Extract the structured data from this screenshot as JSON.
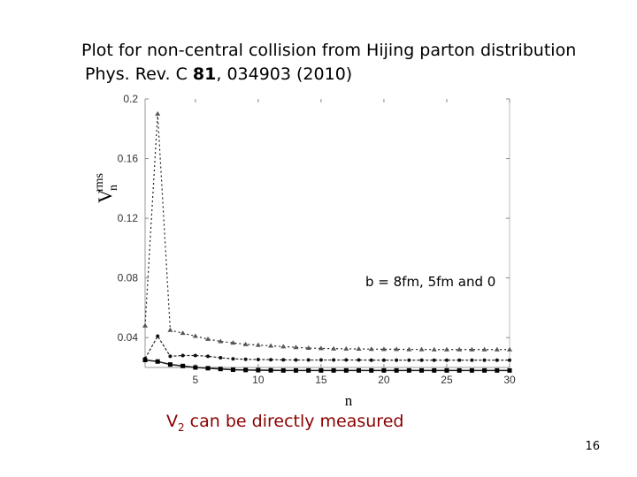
{
  "slide": {
    "title_line1": "Plot for non-central collision from Hijing parton distribution",
    "title_ref_prefix": "Phys. Rev. C ",
    "title_ref_volume": "81",
    "title_ref_suffix": ", 034903 (2010)",
    "caption_main": "V",
    "caption_sub": "2",
    "caption_rest": " can be directly measured",
    "page_number": "16"
  },
  "chart_data": {
    "type": "line",
    "title": "",
    "xlabel": "n",
    "ylabel_main": "V",
    "ylabel_sub": "n",
    "ylabel_sup": "rms",
    "xlim": [
      1,
      30
    ],
    "ylim": [
      0.02,
      0.2
    ],
    "xticks": [
      5,
      10,
      15,
      20,
      25,
      30
    ],
    "yticks": [
      0.04,
      0.08,
      0.12,
      0.16,
      0.2
    ],
    "ytick_labels": [
      "0.04",
      "0.08",
      "0.12",
      "0.16",
      "0.2"
    ],
    "annotation": "b = 8fm, 5fm and 0",
    "x": [
      1,
      2,
      3,
      4,
      5,
      6,
      7,
      8,
      9,
      10,
      11,
      12,
      13,
      14,
      15,
      16,
      17,
      18,
      19,
      20,
      21,
      22,
      23,
      24,
      25,
      26,
      27,
      28,
      29,
      30
    ],
    "series": [
      {
        "marker": "triangle",
        "values": [
          0.048,
          0.19,
          0.045,
          0.043,
          0.041,
          0.039,
          0.0375,
          0.0365,
          0.0355,
          0.035,
          0.0345,
          0.034,
          0.0335,
          0.033,
          0.0328,
          0.0326,
          0.0325,
          0.0324,
          0.0323,
          0.0322,
          0.0322,
          0.0321,
          0.0321,
          0.032,
          0.032,
          0.032,
          0.032,
          0.032,
          0.032,
          0.032
        ]
      },
      {
        "marker": "circle",
        "values": [
          0.026,
          0.041,
          0.0275,
          0.028,
          0.028,
          0.0275,
          0.0265,
          0.0258,
          0.0255,
          0.0253,
          0.0252,
          0.0251,
          0.025,
          0.025,
          0.025,
          0.025,
          0.025,
          0.025,
          0.0249,
          0.0249,
          0.0249,
          0.0249,
          0.0249,
          0.0249,
          0.0249,
          0.0249,
          0.0249,
          0.0249,
          0.0249,
          0.0249
        ]
      },
      {
        "marker": "square",
        "values": [
          0.025,
          0.024,
          0.022,
          0.021,
          0.02,
          0.0195,
          0.019,
          0.0185,
          0.0183,
          0.0182,
          0.0181,
          0.018,
          0.018,
          0.018,
          0.018,
          0.018,
          0.018,
          0.018,
          0.018,
          0.018,
          0.018,
          0.018,
          0.018,
          0.018,
          0.018,
          0.018,
          0.018,
          0.018,
          0.018,
          0.018
        ]
      }
    ]
  }
}
